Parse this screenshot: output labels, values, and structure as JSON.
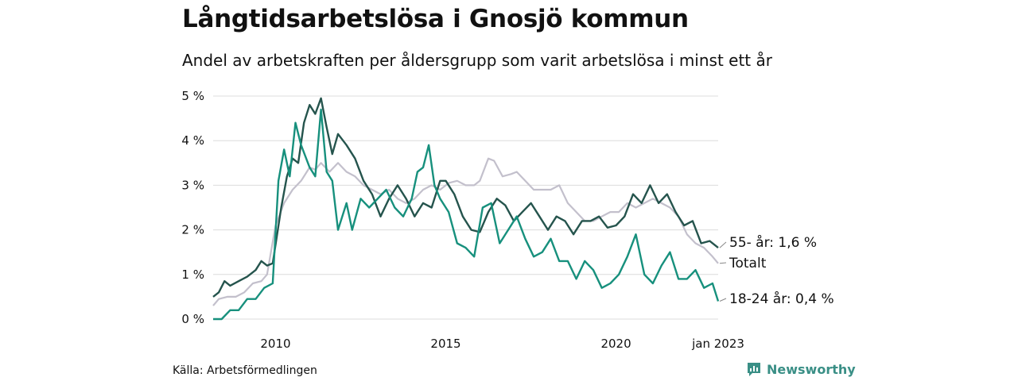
{
  "title": "Långtidsarbetslösa i Gnosjö kommun",
  "subtitle": "Andel av arbetskraften per åldersgrupp som varit arbetslösa i minst ett år",
  "source": "Källa: Arbetsförmedlingen",
  "brand": "Newsworthy",
  "colors": {
    "total": "#c3c0cc",
    "age55": "#25544d",
    "age1824": "#17907d",
    "grid": "#dcdcdc",
    "brand": "#3a8f86"
  },
  "chart_data": {
    "type": "line",
    "x_unit": "month",
    "x_range": [
      "2008-03",
      "2023-01"
    ],
    "ylim": [
      0,
      5
    ],
    "grid": true,
    "y_ticks": [
      {
        "value": 0,
        "label": "0 %"
      },
      {
        "value": 1,
        "label": "1 %"
      },
      {
        "value": 2,
        "label": "2 %"
      },
      {
        "value": 3,
        "label": "3 %"
      },
      {
        "value": 4,
        "label": "4 %"
      },
      {
        "value": 5,
        "label": "5 %"
      }
    ],
    "x_ticks": [
      {
        "date": "2010-01",
        "label": "2010"
      },
      {
        "date": "2015-01",
        "label": "2015"
      },
      {
        "date": "2020-01",
        "label": "2020"
      },
      {
        "date": "2023-01",
        "label": "jan 2023"
      }
    ],
    "series": [
      {
        "key": "total",
        "end_label": "Totalt",
        "points": [
          [
            "2008-03",
            0.3
          ],
          [
            "2008-05",
            0.45
          ],
          [
            "2008-08",
            0.5
          ],
          [
            "2008-11",
            0.5
          ],
          [
            "2009-02",
            0.6
          ],
          [
            "2009-05",
            0.8
          ],
          [
            "2009-08",
            0.85
          ],
          [
            "2009-10",
            1.0
          ],
          [
            "2010-01",
            2.1
          ],
          [
            "2010-04",
            2.6
          ],
          [
            "2010-07",
            2.9
          ],
          [
            "2010-10",
            3.1
          ],
          [
            "2011-01",
            3.4
          ],
          [
            "2011-03",
            3.35
          ],
          [
            "2011-05",
            3.5
          ],
          [
            "2011-08",
            3.3
          ],
          [
            "2011-11",
            3.5
          ],
          [
            "2012-02",
            3.3
          ],
          [
            "2012-05",
            3.2
          ],
          [
            "2012-08",
            3.0
          ],
          [
            "2012-11",
            2.9
          ],
          [
            "2013-02",
            2.8
          ],
          [
            "2013-05",
            2.9
          ],
          [
            "2013-08",
            2.7
          ],
          [
            "2013-11",
            2.6
          ],
          [
            "2014-02",
            2.7
          ],
          [
            "2014-05",
            2.9
          ],
          [
            "2014-08",
            3.0
          ],
          [
            "2014-11",
            2.9
          ],
          [
            "2015-02",
            3.05
          ],
          [
            "2015-05",
            3.1
          ],
          [
            "2015-08",
            3.0
          ],
          [
            "2015-11",
            3.0
          ],
          [
            "2016-01",
            3.1
          ],
          [
            "2016-04",
            3.6
          ],
          [
            "2016-06",
            3.55
          ],
          [
            "2016-09",
            3.2
          ],
          [
            "2016-12",
            3.25
          ],
          [
            "2017-02",
            3.3
          ],
          [
            "2017-05",
            3.1
          ],
          [
            "2017-08",
            2.9
          ],
          [
            "2017-11",
            2.9
          ],
          [
            "2018-02",
            2.9
          ],
          [
            "2018-05",
            3.0
          ],
          [
            "2018-08",
            2.6
          ],
          [
            "2018-11",
            2.4
          ],
          [
            "2019-02",
            2.2
          ],
          [
            "2019-05",
            2.2
          ],
          [
            "2019-08",
            2.3
          ],
          [
            "2019-11",
            2.4
          ],
          [
            "2020-02",
            2.4
          ],
          [
            "2020-05",
            2.6
          ],
          [
            "2020-08",
            2.5
          ],
          [
            "2020-11",
            2.6
          ],
          [
            "2021-02",
            2.7
          ],
          [
            "2021-05",
            2.6
          ],
          [
            "2021-08",
            2.5
          ],
          [
            "2021-11",
            2.3
          ],
          [
            "2022-02",
            1.9
          ],
          [
            "2022-05",
            1.7
          ],
          [
            "2022-08",
            1.6
          ],
          [
            "2022-11",
            1.4
          ],
          [
            "2023-01",
            1.25
          ]
        ]
      },
      {
        "key": "age55",
        "end_label": "55- år: 1,6 %",
        "points": [
          [
            "2008-03",
            0.5
          ],
          [
            "2008-05",
            0.6
          ],
          [
            "2008-07",
            0.85
          ],
          [
            "2008-09",
            0.75
          ],
          [
            "2008-12",
            0.85
          ],
          [
            "2009-03",
            0.95
          ],
          [
            "2009-06",
            1.1
          ],
          [
            "2009-08",
            1.3
          ],
          [
            "2009-10",
            1.2
          ],
          [
            "2009-12",
            1.25
          ],
          [
            "2010-03",
            2.5
          ],
          [
            "2010-05",
            3.2
          ],
          [
            "2010-07",
            3.6
          ],
          [
            "2010-09",
            3.5
          ],
          [
            "2010-11",
            4.4
          ],
          [
            "2011-01",
            4.8
          ],
          [
            "2011-03",
            4.6
          ],
          [
            "2011-05",
            4.95
          ],
          [
            "2011-07",
            4.3
          ],
          [
            "2011-09",
            3.7
          ],
          [
            "2011-11",
            4.15
          ],
          [
            "2012-02",
            3.9
          ],
          [
            "2012-05",
            3.6
          ],
          [
            "2012-08",
            3.1
          ],
          [
            "2012-11",
            2.8
          ],
          [
            "2013-02",
            2.3
          ],
          [
            "2013-05",
            2.7
          ],
          [
            "2013-08",
            3.0
          ],
          [
            "2013-11",
            2.7
          ],
          [
            "2014-02",
            2.3
          ],
          [
            "2014-05",
            2.6
          ],
          [
            "2014-08",
            2.5
          ],
          [
            "2014-11",
            3.1
          ],
          [
            "2015-01",
            3.1
          ],
          [
            "2015-04",
            2.8
          ],
          [
            "2015-07",
            2.3
          ],
          [
            "2015-10",
            2.0
          ],
          [
            "2016-01",
            1.95
          ],
          [
            "2016-04",
            2.4
          ],
          [
            "2016-07",
            2.7
          ],
          [
            "2016-10",
            2.55
          ],
          [
            "2017-01",
            2.2
          ],
          [
            "2017-04",
            2.4
          ],
          [
            "2017-07",
            2.6
          ],
          [
            "2017-10",
            2.3
          ],
          [
            "2018-01",
            2.0
          ],
          [
            "2018-04",
            2.3
          ],
          [
            "2018-07",
            2.2
          ],
          [
            "2018-10",
            1.9
          ],
          [
            "2019-01",
            2.2
          ],
          [
            "2019-04",
            2.2
          ],
          [
            "2019-07",
            2.3
          ],
          [
            "2019-10",
            2.05
          ],
          [
            "2020-01",
            2.1
          ],
          [
            "2020-04",
            2.3
          ],
          [
            "2020-07",
            2.8
          ],
          [
            "2020-10",
            2.6
          ],
          [
            "2021-01",
            3.0
          ],
          [
            "2021-04",
            2.6
          ],
          [
            "2021-07",
            2.8
          ],
          [
            "2021-10",
            2.4
          ],
          [
            "2022-01",
            2.1
          ],
          [
            "2022-04",
            2.2
          ],
          [
            "2022-07",
            1.7
          ],
          [
            "2022-10",
            1.75
          ],
          [
            "2023-01",
            1.6
          ]
        ]
      },
      {
        "key": "age1824",
        "end_label": "18-24 år: 0,4 %",
        "points": [
          [
            "2008-03",
            0.0
          ],
          [
            "2008-06",
            0.0
          ],
          [
            "2008-09",
            0.2
          ],
          [
            "2008-12",
            0.2
          ],
          [
            "2009-03",
            0.45
          ],
          [
            "2009-06",
            0.45
          ],
          [
            "2009-09",
            0.7
          ],
          [
            "2009-12",
            0.8
          ],
          [
            "2010-02",
            3.1
          ],
          [
            "2010-04",
            3.8
          ],
          [
            "2010-06",
            3.2
          ],
          [
            "2010-08",
            4.4
          ],
          [
            "2010-10",
            3.9
          ],
          [
            "2011-01",
            3.4
          ],
          [
            "2011-03",
            3.2
          ],
          [
            "2011-05",
            4.7
          ],
          [
            "2011-07",
            3.3
          ],
          [
            "2011-09",
            3.1
          ],
          [
            "2011-11",
            2.0
          ],
          [
            "2012-02",
            2.6
          ],
          [
            "2012-04",
            2.0
          ],
          [
            "2012-07",
            2.7
          ],
          [
            "2012-10",
            2.5
          ],
          [
            "2013-01",
            2.7
          ],
          [
            "2013-04",
            2.9
          ],
          [
            "2013-07",
            2.5
          ],
          [
            "2013-10",
            2.3
          ],
          [
            "2014-01",
            2.7
          ],
          [
            "2014-03",
            3.3
          ],
          [
            "2014-05",
            3.4
          ],
          [
            "2014-07",
            3.9
          ],
          [
            "2014-09",
            3.0
          ],
          [
            "2014-11",
            2.7
          ],
          [
            "2015-02",
            2.4
          ],
          [
            "2015-05",
            1.7
          ],
          [
            "2015-08",
            1.6
          ],
          [
            "2015-11",
            1.4
          ],
          [
            "2016-02",
            2.5
          ],
          [
            "2016-05",
            2.6
          ],
          [
            "2016-08",
            1.7
          ],
          [
            "2016-11",
            2.0
          ],
          [
            "2017-02",
            2.3
          ],
          [
            "2017-05",
            1.8
          ],
          [
            "2017-08",
            1.4
          ],
          [
            "2017-11",
            1.5
          ],
          [
            "2018-02",
            1.8
          ],
          [
            "2018-05",
            1.3
          ],
          [
            "2018-08",
            1.3
          ],
          [
            "2018-11",
            0.9
          ],
          [
            "2019-02",
            1.3
          ],
          [
            "2019-05",
            1.1
          ],
          [
            "2019-08",
            0.7
          ],
          [
            "2019-11",
            0.8
          ],
          [
            "2020-02",
            1.0
          ],
          [
            "2020-05",
            1.4
          ],
          [
            "2020-08",
            1.9
          ],
          [
            "2020-11",
            1.0
          ],
          [
            "2021-02",
            0.8
          ],
          [
            "2021-05",
            1.2
          ],
          [
            "2021-08",
            1.5
          ],
          [
            "2021-11",
            0.9
          ],
          [
            "2022-02",
            0.9
          ],
          [
            "2022-05",
            1.1
          ],
          [
            "2022-08",
            0.7
          ],
          [
            "2022-11",
            0.8
          ],
          [
            "2023-01",
            0.4
          ]
        ]
      }
    ]
  }
}
